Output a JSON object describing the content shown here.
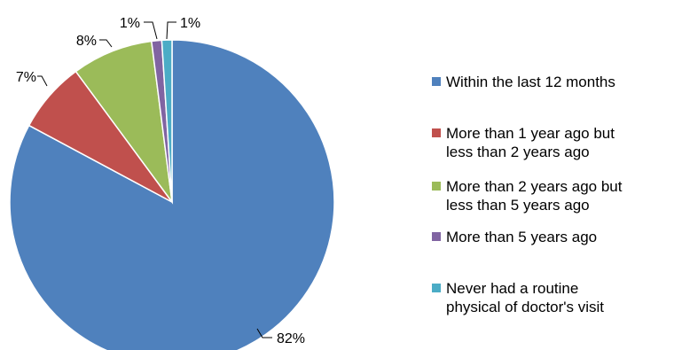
{
  "chart_data": {
    "type": "pie",
    "title": "",
    "categories": [
      "Within the last 12 months",
      "More than 1 year ago but less than 2 years ago",
      "More than 2 years ago but less than 5 years ago",
      "More than 5 years ago",
      "Never had a routine physical of doctor's visit"
    ],
    "legend_lines": [
      [
        "Within the last 12 months"
      ],
      [
        "More than 1 year ago but",
        "less than 2 years ago"
      ],
      [
        "More than 2 years ago but",
        "less than 5 years ago"
      ],
      [
        "More than 5 years ago"
      ],
      [
        "Never had a routine",
        "physical of doctor's visit"
      ]
    ],
    "values": [
      82,
      7,
      8,
      1,
      1
    ],
    "labels": [
      "82%",
      "7%",
      "8%",
      "1%",
      "1%"
    ],
    "colors": [
      "#4F81BD",
      "#C0504D",
      "#9BBB59",
      "#8064A2",
      "#4BACC6"
    ],
    "legend_position": "right",
    "start_angle": "12 o'clock",
    "direction": "clockwise"
  }
}
